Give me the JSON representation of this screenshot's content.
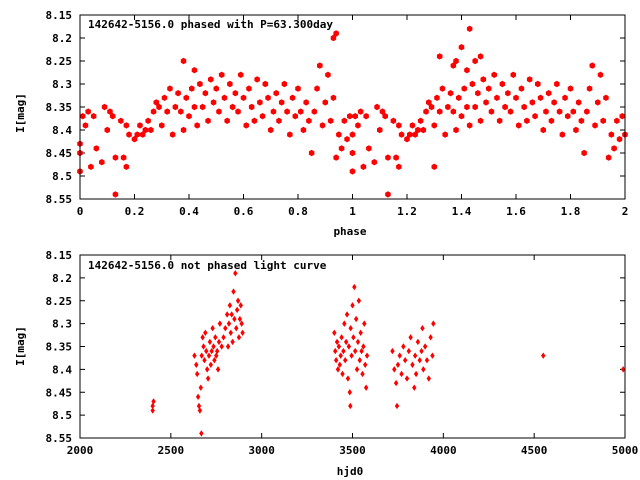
{
  "chart_data": [
    {
      "type": "scatter",
      "title": "142642-5156.0 phased with P=63.300day",
      "xlabel": "phase",
      "ylabel": "I[mag]",
      "xlim": [
        0,
        2
      ],
      "ylim": [
        8.55,
        8.15
      ],
      "y_inverted": true,
      "xticks": [
        "0",
        "0.2",
        "0.4",
        "0.6",
        "0.8",
        "1",
        "1.2",
        "1.4",
        "1.6",
        "1.8",
        "2"
      ],
      "yticks": [
        "8.15",
        "8.2",
        "8.25",
        "8.3",
        "8.35",
        "8.4",
        "8.45",
        "8.5",
        "8.55"
      ],
      "marker": "filled-hexagon",
      "color": "#ff0000",
      "points_base": [
        [
          0.0,
          8.45
        ],
        [
          0.0,
          8.49
        ],
        [
          0.01,
          8.37
        ],
        [
          0.02,
          8.39
        ],
        [
          0.03,
          8.36
        ],
        [
          0.04,
          8.48
        ],
        [
          0.05,
          8.37
        ],
        [
          0.06,
          8.44
        ],
        [
          0.08,
          8.47
        ],
        [
          0.09,
          8.35
        ],
        [
          0.1,
          8.4
        ],
        [
          0.11,
          8.36
        ],
        [
          0.12,
          8.37
        ],
        [
          0.13,
          8.54
        ],
        [
          0.13,
          8.46
        ],
        [
          0.15,
          8.38
        ],
        [
          0.16,
          8.46
        ],
        [
          0.17,
          8.48
        ],
        [
          0.17,
          8.39
        ],
        [
          0.18,
          8.41
        ],
        [
          0.2,
          8.42
        ],
        [
          0.21,
          8.41
        ],
        [
          0.22,
          8.39
        ],
        [
          0.23,
          8.41
        ],
        [
          0.24,
          8.4
        ],
        [
          0.25,
          8.38
        ],
        [
          0.26,
          8.4
        ],
        [
          0.27,
          8.36
        ],
        [
          0.28,
          8.34
        ],
        [
          0.29,
          8.35
        ],
        [
          0.3,
          8.39
        ],
        [
          0.31,
          8.33
        ],
        [
          0.32,
          8.36
        ],
        [
          0.33,
          8.31
        ],
        [
          0.34,
          8.41
        ],
        [
          0.35,
          8.35
        ],
        [
          0.36,
          8.32
        ],
        [
          0.37,
          8.36
        ],
        [
          0.38,
          8.4
        ],
        [
          0.38,
          8.25
        ],
        [
          0.39,
          8.33
        ],
        [
          0.4,
          8.37
        ],
        [
          0.41,
          8.31
        ],
        [
          0.42,
          8.35
        ],
        [
          0.42,
          8.27
        ],
        [
          0.43,
          8.39
        ],
        [
          0.44,
          8.3
        ],
        [
          0.45,
          8.35
        ],
        [
          0.46,
          8.32
        ],
        [
          0.47,
          8.38
        ],
        [
          0.48,
          8.29
        ],
        [
          0.49,
          8.34
        ],
        [
          0.5,
          8.31
        ],
        [
          0.51,
          8.36
        ],
        [
          0.52,
          8.28
        ],
        [
          0.53,
          8.33
        ],
        [
          0.54,
          8.38
        ],
        [
          0.55,
          8.3
        ],
        [
          0.56,
          8.35
        ],
        [
          0.57,
          8.32
        ],
        [
          0.58,
          8.36
        ],
        [
          0.59,
          8.28
        ],
        [
          0.6,
          8.33
        ],
        [
          0.61,
          8.39
        ],
        [
          0.62,
          8.31
        ],
        [
          0.63,
          8.35
        ],
        [
          0.64,
          8.38
        ],
        [
          0.65,
          8.29
        ],
        [
          0.66,
          8.34
        ],
        [
          0.67,
          8.37
        ],
        [
          0.68,
          8.3
        ],
        [
          0.69,
          8.33
        ],
        [
          0.7,
          8.4
        ],
        [
          0.71,
          8.36
        ],
        [
          0.72,
          8.32
        ],
        [
          0.73,
          8.38
        ],
        [
          0.74,
          8.34
        ],
        [
          0.75,
          8.3
        ],
        [
          0.76,
          8.36
        ],
        [
          0.77,
          8.41
        ],
        [
          0.78,
          8.33
        ],
        [
          0.79,
          8.37
        ],
        [
          0.8,
          8.31
        ],
        [
          0.81,
          8.36
        ],
        [
          0.82,
          8.4
        ],
        [
          0.83,
          8.34
        ],
        [
          0.84,
          8.38
        ],
        [
          0.85,
          8.45
        ],
        [
          0.86,
          8.36
        ],
        [
          0.87,
          8.31
        ],
        [
          0.88,
          8.26
        ],
        [
          0.89,
          8.39
        ],
        [
          0.9,
          8.34
        ],
        [
          0.91,
          8.28
        ],
        [
          0.92,
          8.38
        ],
        [
          0.93,
          8.33
        ],
        [
          0.94,
          8.46
        ],
        [
          0.95,
          8.41
        ],
        [
          0.96,
          8.44
        ],
        [
          0.97,
          8.38
        ],
        [
          0.98,
          8.42
        ],
        [
          0.99,
          8.37
        ],
        [
          1.0,
          8.41
        ]
      ],
      "points_upper_extra": [
        [
          0.0,
          8.43
        ],
        [
          0.93,
          8.2
        ],
        [
          0.94,
          8.19
        ],
        [
          1.4,
          8.22
        ],
        [
          1.43,
          8.18
        ],
        [
          1.32,
          8.24
        ],
        [
          1.37,
          8.26
        ],
        [
          1.45,
          8.25
        ],
        [
          1.47,
          8.24
        ],
        [
          1.3,
          8.48
        ]
      ]
    },
    {
      "type": "scatter",
      "title": "142642-5156.0 not phased light curve",
      "xlabel": "hjd0",
      "ylabel": "I[mag]",
      "xlim": [
        2000,
        5000
      ],
      "ylim": [
        8.55,
        8.15
      ],
      "y_inverted": true,
      "xticks": [
        "2000",
        "2500",
        "3000",
        "3500",
        "4000",
        "4500",
        "5000"
      ],
      "yticks": [
        "8.15",
        "8.2",
        "8.25",
        "8.3",
        "8.35",
        "8.4",
        "8.45",
        "8.5",
        "8.55"
      ],
      "marker": "small-diamond",
      "color": "#ff0000",
      "points": [
        [
          2400,
          8.48
        ],
        [
          2400,
          8.49
        ],
        [
          2405,
          8.47
        ],
        [
          2630,
          8.37
        ],
        [
          2640,
          8.39
        ],
        [
          2645,
          8.41
        ],
        [
          2650,
          8.46
        ],
        [
          2655,
          8.48
        ],
        [
          2660,
          8.49
        ],
        [
          2665,
          8.44
        ],
        [
          2668,
          8.54
        ],
        [
          2670,
          8.37
        ],
        [
          2675,
          8.33
        ],
        [
          2680,
          8.35
        ],
        [
          2685,
          8.38
        ],
        [
          2690,
          8.32
        ],
        [
          2695,
          8.36
        ],
        [
          2700,
          8.4
        ],
        [
          2705,
          8.42
        ],
        [
          2710,
          8.37
        ],
        [
          2715,
          8.34
        ],
        [
          2720,
          8.39
        ],
        [
          2725,
          8.36
        ],
        [
          2730,
          8.31
        ],
        [
          2735,
          8.35
        ],
        [
          2740,
          8.38
        ],
        [
          2745,
          8.33
        ],
        [
          2750,
          8.37
        ],
        [
          2755,
          8.36
        ],
        [
          2760,
          8.4
        ],
        [
          2765,
          8.34
        ],
        [
          2770,
          8.3
        ],
        [
          2780,
          8.35
        ],
        [
          2790,
          8.33
        ],
        [
          2800,
          8.31
        ],
        [
          2810,
          8.28
        ],
        [
          2815,
          8.35
        ],
        [
          2820,
          8.3
        ],
        [
          2825,
          8.26
        ],
        [
          2830,
          8.32
        ],
        [
          2835,
          8.28
        ],
        [
          2840,
          8.34
        ],
        [
          2845,
          8.23
        ],
        [
          2850,
          8.29
        ],
        [
          2855,
          8.19
        ],
        [
          2860,
          8.31
        ],
        [
          2865,
          8.27
        ],
        [
          2870,
          8.25
        ],
        [
          2875,
          8.33
        ],
        [
          2880,
          8.29
        ],
        [
          2885,
          8.26
        ],
        [
          2890,
          8.3
        ],
        [
          2895,
          8.32
        ],
        [
          3400,
          8.32
        ],
        [
          3405,
          8.36
        ],
        [
          3410,
          8.38
        ],
        [
          3415,
          8.34
        ],
        [
          3420,
          8.4
        ],
        [
          3425,
          8.35
        ],
        [
          3430,
          8.39
        ],
        [
          3435,
          8.37
        ],
        [
          3440,
          8.33
        ],
        [
          3445,
          8.41
        ],
        [
          3450,
          8.36
        ],
        [
          3455,
          8.3
        ],
        [
          3460,
          8.38
        ],
        [
          3465,
          8.34
        ],
        [
          3470,
          8.28
        ],
        [
          3475,
          8.42
        ],
        [
          3480,
          8.35
        ],
        [
          3485,
          8.45
        ],
        [
          3488,
          8.48
        ],
        [
          3490,
          8.31
        ],
        [
          3495,
          8.37
        ],
        [
          3500,
          8.26
        ],
        [
          3505,
          8.33
        ],
        [
          3510,
          8.22
        ],
        [
          3515,
          8.36
        ],
        [
          3520,
          8.29
        ],
        [
          3525,
          8.4
        ],
        [
          3530,
          8.34
        ],
        [
          3535,
          8.25
        ],
        [
          3540,
          8.38
        ],
        [
          3545,
          8.32
        ],
        [
          3550,
          8.36
        ],
        [
          3555,
          8.41
        ],
        [
          3560,
          8.35
        ],
        [
          3565,
          8.3
        ],
        [
          3570,
          8.39
        ],
        [
          3575,
          8.44
        ],
        [
          3580,
          8.37
        ],
        [
          3720,
          8.36
        ],
        [
          3730,
          8.4
        ],
        [
          3740,
          8.43
        ],
        [
          3745,
          8.48
        ],
        [
          3750,
          8.39
        ],
        [
          3760,
          8.37
        ],
        [
          3770,
          8.41
        ],
        [
          3780,
          8.35
        ],
        [
          3790,
          8.38
        ],
        [
          3800,
          8.42
        ],
        [
          3810,
          8.36
        ],
        [
          3820,
          8.33
        ],
        [
          3830,
          8.39
        ],
        [
          3840,
          8.44
        ],
        [
          3845,
          8.37
        ],
        [
          3850,
          8.41
        ],
        [
          3860,
          8.34
        ],
        [
          3870,
          8.38
        ],
        [
          3880,
          8.36
        ],
        [
          3885,
          8.31
        ],
        [
          3890,
          8.4
        ],
        [
          3900,
          8.35
        ],
        [
          3910,
          8.38
        ],
        [
          3920,
          8.42
        ],
        [
          3930,
          8.33
        ],
        [
          3940,
          8.37
        ],
        [
          3945,
          8.3
        ],
        [
          4550,
          8.37
        ],
        [
          4990,
          8.4
        ]
      ]
    }
  ]
}
